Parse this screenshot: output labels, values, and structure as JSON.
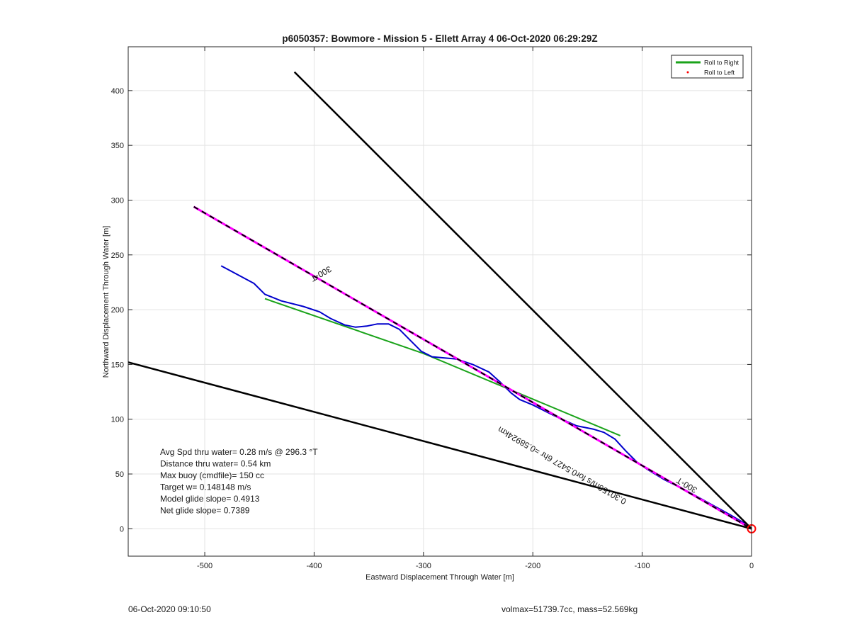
{
  "chart_data": {
    "type": "line",
    "title": "p6050357: Bowmore - Mission 5 - Ellett Array 4 06-Oct-2020 06:29:29Z",
    "xlabel": "Eastward Displacement Through Water [m]",
    "ylabel": "Northward Displacement Through Water [m]",
    "xlim": [
      -570,
      0
    ],
    "ylim": [
      -25,
      440
    ],
    "xticks": [
      -500,
      -400,
      -300,
      -200,
      -100,
      0
    ],
    "yticks": [
      0,
      50,
      100,
      150,
      200,
      250,
      300,
      350,
      400
    ],
    "grid": true,
    "legend_position": "top-right",
    "legend": [
      {
        "label": "Roll to Right",
        "color": "#1aa31a",
        "style": "line"
      },
      {
        "label": "Roll to Left",
        "color": "#ff0000",
        "style": "dot"
      }
    ],
    "series": [
      {
        "name": "Roll to Right",
        "color": "#1aa31a",
        "x": [
          -445,
          -300,
          -120
        ],
        "y": [
          210,
          160,
          85
        ]
      },
      {
        "color": "#0000cc",
        "x": [
          -485,
          -470,
          -455,
          -445,
          -430,
          -410,
          -395,
          -385,
          -372,
          -362,
          -352,
          -342,
          -332,
          -322,
          -312,
          -302,
          -292,
          -270,
          -255,
          -240,
          -230,
          -220,
          -212,
          -200,
          -180,
          -160,
          -145,
          -135,
          -125,
          -115,
          -105,
          -95,
          -80,
          -60,
          -40,
          -20,
          -8,
          0
        ],
        "y": [
          240,
          232,
          224,
          214,
          208,
          203,
          198,
          192,
          186,
          184,
          185,
          187,
          187,
          182,
          172,
          162,
          157,
          155,
          150,
          143,
          134,
          124,
          118,
          113,
          103,
          94,
          91,
          88,
          82,
          71,
          61,
          54,
          45,
          35,
          24,
          13,
          6,
          0
        ]
      },
      {
        "color": "#ff00ff",
        "style": "dashed-overlay",
        "x": [
          -510,
          0
        ],
        "y": [
          294,
          0
        ]
      },
      {
        "color": "#000000",
        "x": [
          -418,
          0
        ],
        "y": [
          417,
          0
        ]
      },
      {
        "color": "#000000",
        "x": [
          -570,
          0
        ],
        "y": [
          152,
          0
        ]
      }
    ],
    "start_marker": {
      "x": 0,
      "y": 0,
      "color": "#ff0000"
    },
    "annotations": [
      {
        "text": "300◦T",
        "x": -395,
        "y": 235,
        "rotation": 150.5
      },
      {
        "text": "300◦T",
        "x": -58,
        "y": 42,
        "rotation": -149.5
      },
      {
        "text": "0.30156m/s for0.5427 6hr =0.58924km",
        "x": -172,
        "y": 60,
        "rotation": 210
      }
    ],
    "stats": [
      "Avg Spd thru water=  0.28 m/s @ 296.3 °T",
      "Distance thru water=  0.54 km",
      "Max buoy (cmdfile)= 150 cc",
      "Target w= 0.148148 m/s",
      "Model glide slope= 0.4913",
      "Net glide slope= 0.7389"
    ]
  },
  "footer": {
    "left": "06-Oct-2020 09:10:50",
    "right": "volmax=51739.7cc, mass=52.569kg"
  }
}
